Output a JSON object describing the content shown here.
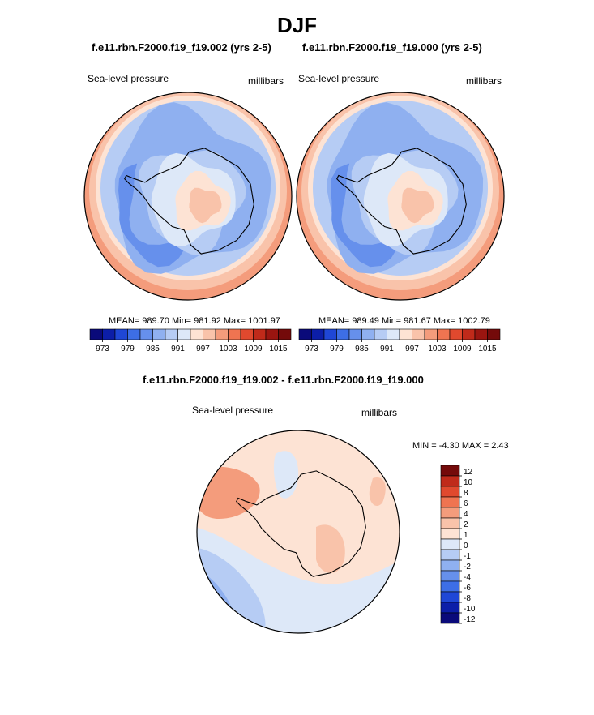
{
  "figure": {
    "title": "DJF",
    "diff_title": "f.e11.rbn.F2000.f19_f19.002 - f.e11.rbn.F2000.f19_f19.000"
  },
  "colors": {
    "abs_palette": [
      "#0a0a7a",
      "#0c1ea8",
      "#1f47d6",
      "#3d6ee6",
      "#6690ec",
      "#8fb0f0",
      "#b6ccf4",
      "#dde8f8",
      "#fde3d4",
      "#f9c3aa",
      "#f49c7c",
      "#ef7451",
      "#e0492e",
      "#c02a1a",
      "#9a1510",
      "#740a0a"
    ],
    "diff_palette": [
      "#0a0a7a",
      "#0c1ea8",
      "#1f47d6",
      "#3d6ee6",
      "#6690ec",
      "#8fb0f0",
      "#b6ccf4",
      "#dde8f8",
      "#fde3d4",
      "#f9c3aa",
      "#f49c7c",
      "#ef7451",
      "#e0492e",
      "#c02a1a",
      "#740a0a"
    ],
    "land_outline": "#000000"
  },
  "panels": {
    "left": {
      "case": "f.e11.rbn.F2000.f19_f19.002 (yrs 2-5)",
      "variable": "Sea-level pressure",
      "units": "millibars",
      "stats": "MEAN= 989.70  Min= 981.92  Max= 1001.97"
    },
    "right": {
      "case": "f.e11.rbn.F2000.f19_f19.000 (yrs 2-5)",
      "variable": "Sea-level pressure",
      "units": "millibars",
      "stats": "MEAN= 989.49  Min= 981.67  Max= 1002.79"
    },
    "diff": {
      "variable": "Sea-level pressure",
      "units": "millibars",
      "minmax": "MIN =  -4.30 MAX =   2.43"
    }
  },
  "chart_data": [
    {
      "type": "heatmap",
      "projection": "south-polar stereographic",
      "title": "f.e11.rbn.F2000.f19_f19.002 (yrs 2-5)",
      "variable": "Sea-level pressure",
      "units": "millibars",
      "mean": 989.7,
      "min": 981.92,
      "max": 1001.97,
      "colorbar_ticks": [
        973,
        979,
        985,
        991,
        997,
        1003,
        1009,
        1015
      ],
      "colorbar_levels": [
        973,
        976,
        979,
        982,
        985,
        988,
        991,
        994,
        997,
        1000,
        1003,
        1006,
        1009,
        1012,
        1015
      ]
    },
    {
      "type": "heatmap",
      "projection": "south-polar stereographic",
      "title": "f.e11.rbn.F2000.f19_f19.000 (yrs 2-5)",
      "variable": "Sea-level pressure",
      "units": "millibars",
      "mean": 989.49,
      "min": 981.67,
      "max": 1002.79,
      "colorbar_ticks": [
        973,
        979,
        985,
        991,
        997,
        1003,
        1009,
        1015
      ],
      "colorbar_levels": [
        973,
        976,
        979,
        982,
        985,
        988,
        991,
        994,
        997,
        1000,
        1003,
        1006,
        1009,
        1012,
        1015
      ]
    },
    {
      "type": "heatmap",
      "projection": "south-polar stereographic",
      "title": "f.e11.rbn.F2000.f19_f19.002 - f.e11.rbn.F2000.f19_f19.000",
      "variable": "Sea-level pressure",
      "units": "millibars",
      "min": -4.3,
      "max": 2.43,
      "colorbar_levels": [
        12,
        10,
        8,
        6,
        4,
        2,
        1,
        0,
        -1,
        -2,
        -4,
        -6,
        -8,
        -10,
        -12
      ]
    }
  ]
}
